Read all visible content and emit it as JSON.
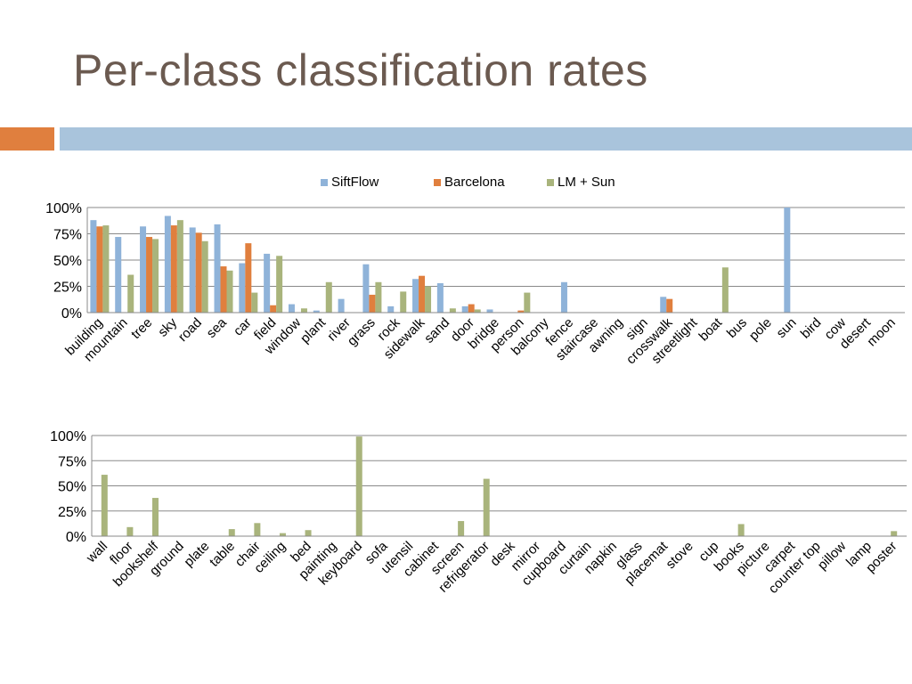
{
  "slide": {
    "title": "Per-class classification rates",
    "accent_colors": {
      "left_bar": "#e07f3e",
      "right_bar": "#a9c4dc",
      "title": "#6b5a50"
    }
  },
  "chart_data": [
    {
      "type": "bar",
      "legend_position": "top",
      "grid": true,
      "ylim": [
        0,
        100
      ],
      "yticks": [
        "0%",
        "25%",
        "50%",
        "75%",
        "100%"
      ],
      "categories": [
        "building",
        "mountain",
        "tree",
        "sky",
        "road",
        "sea",
        "car",
        "field",
        "window",
        "plant",
        "river",
        "grass",
        "rock",
        "sidewalk",
        "sand",
        "door",
        "bridge",
        "person",
        "balcony",
        "fence",
        "staircase",
        "awning",
        "sign",
        "crosswalk",
        "streetlight",
        "boat",
        "bus",
        "pole",
        "sun",
        "bird",
        "cow",
        "desert",
        "moon"
      ],
      "series": [
        {
          "name": "SiftFlow",
          "color": "#8fb3d9",
          "values": [
            88,
            72,
            82,
            92,
            81,
            84,
            47,
            56,
            8,
            2,
            13,
            46,
            6,
            32,
            28,
            6,
            3,
            0,
            0,
            29,
            0,
            0,
            0,
            15,
            0,
            0,
            0,
            0,
            100,
            0,
            0,
            0,
            0
          ]
        },
        {
          "name": "Barcelona",
          "color": "#e07f3e",
          "values": [
            82,
            0,
            72,
            83,
            76,
            44,
            66,
            7,
            0,
            0,
            0,
            17,
            0,
            35,
            0,
            8,
            0,
            2,
            0,
            0,
            0,
            0,
            0,
            13,
            0,
            0,
            0,
            0,
            0,
            0,
            0,
            0,
            0
          ]
        },
        {
          "name": "LM + Sun",
          "color": "#a9b47c",
          "values": [
            83,
            36,
            70,
            88,
            68,
            40,
            19,
            54,
            4,
            29,
            0,
            29,
            20,
            25,
            4,
            3,
            0,
            19,
            0,
            0,
            0,
            0,
            0,
            0,
            0,
            43,
            0,
            0,
            0,
            0,
            0,
            0,
            0
          ]
        }
      ]
    },
    {
      "type": "bar",
      "grid": true,
      "ylim": [
        0,
        100
      ],
      "yticks": [
        "0%",
        "25%",
        "50%",
        "75%",
        "100%"
      ],
      "categories": [
        "wall",
        "floor",
        "bookshelf",
        "ground",
        "plate",
        "table",
        "chair",
        "ceiling",
        "bed",
        "painting",
        "keyboard",
        "sofa",
        "utensil",
        "cabinet",
        "screen",
        "refrigerator",
        "desk",
        "mirror",
        "cupboard",
        "curtain",
        "napkin",
        "glass",
        "placemat",
        "stove",
        "cup",
        "books",
        "picture",
        "carpet",
        "counter top",
        "pillow",
        "lamp",
        "poster"
      ],
      "series": [
        {
          "name": "",
          "color": "#a9b47c",
          "values": [
            61,
            9,
            38,
            0,
            0,
            7,
            13,
            3,
            6,
            0,
            99,
            0,
            0,
            0,
            15,
            57,
            0,
            0,
            0,
            0,
            0,
            0,
            0,
            0,
            0,
            12,
            0,
            0,
            0,
            0,
            0,
            5
          ]
        }
      ]
    }
  ]
}
